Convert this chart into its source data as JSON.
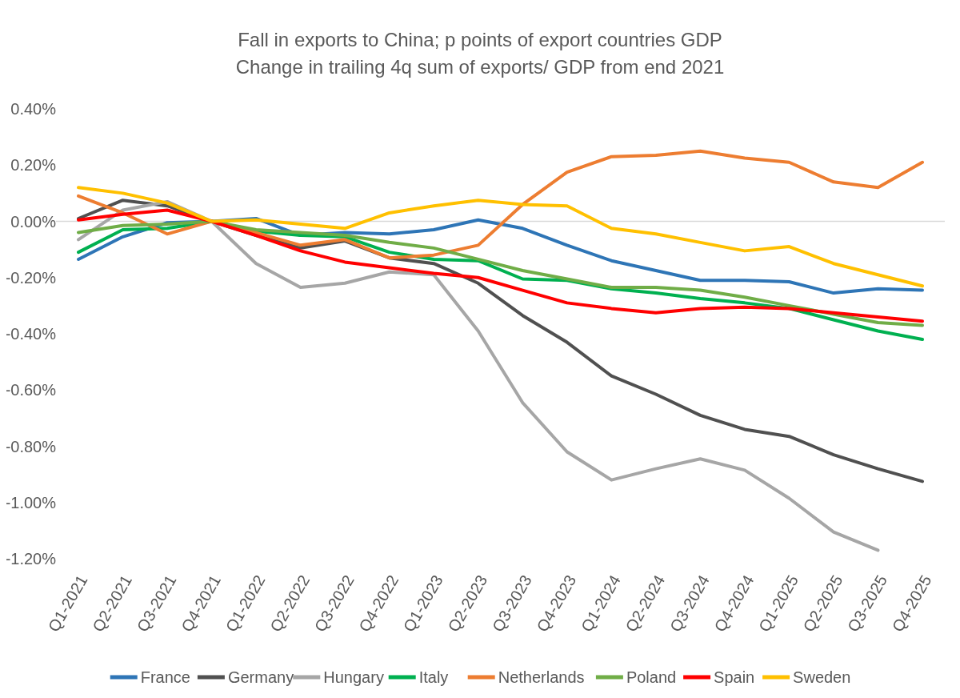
{
  "chart_data": {
    "type": "line",
    "title": "Fall in exports to China; p points of export countries GDP",
    "subtitle": "Change in trailing 4q sum of exports/ GDP from end 2021",
    "categories": [
      "Q1-2021",
      "Q2-2021",
      "Q3-2021",
      "Q4-2021",
      "Q1-2022",
      "Q2-2022",
      "Q3-2022",
      "Q4-2022",
      "Q1-2023",
      "Q2-2023",
      "Q3-2023",
      "Q4-2023",
      "Q1-2024",
      "Q2-2024",
      "Q3-2024",
      "Q4-2024",
      "Q1-2025",
      "Q2-2025",
      "Q3-2025",
      "Q4-2025"
    ],
    "ylim": [
      -1.2,
      0.4
    ],
    "yticks": [
      {
        "value": -1.2,
        "label": "-1.20%"
      },
      {
        "value": -1.0,
        "label": "-1.00%"
      },
      {
        "value": -0.8,
        "label": "-0.80%"
      },
      {
        "value": -0.6,
        "label": "-0.60%"
      },
      {
        "value": -0.4,
        "label": "-0.40%"
      },
      {
        "value": -0.2,
        "label": "-0.20%"
      },
      {
        "value": 0,
        "label": "0.00%"
      },
      {
        "value": 0.2,
        "label": "0.20%"
      },
      {
        "value": 0.4,
        "label": "0.40%"
      }
    ],
    "grid": false,
    "legend": "bottom",
    "ref_lines": [
      {
        "axis": "y",
        "value": 0,
        "color": "#d9d9d9"
      }
    ],
    "marker": "none",
    "line_style": "solid",
    "series": [
      {
        "name": "France",
        "color": "#2e75b6",
        "values": [
          -0.135,
          -0.055,
          -0.005,
          0,
          0.01,
          -0.05,
          -0.04,
          -0.045,
          -0.03,
          0.005,
          -0.025,
          -0.085,
          -0.14,
          -0.175,
          -0.21,
          -0.21,
          -0.215,
          -0.255,
          -0.24,
          -0.245
        ]
      },
      {
        "name": "Germany",
        "color": "#505050",
        "values": [
          0.01,
          0.075,
          0.055,
          0,
          -0.05,
          -0.095,
          -0.07,
          -0.13,
          -0.15,
          -0.22,
          -0.335,
          -0.43,
          -0.55,
          -0.615,
          -0.69,
          -0.74,
          -0.765,
          -0.83,
          -0.88,
          -0.925
        ]
      },
      {
        "name": "Hungary",
        "color": "#a6a6a6",
        "values": [
          -0.065,
          0.04,
          0.07,
          0,
          -0.15,
          -0.235,
          -0.22,
          -0.18,
          -0.19,
          -0.39,
          -0.645,
          -0.82,
          -0.92,
          -0.88,
          -0.845,
          -0.885,
          -0.985,
          -1.105,
          -1.17,
          null
        ]
      },
      {
        "name": "Italy",
        "color": "#00b050",
        "values": [
          -0.11,
          -0.03,
          -0.025,
          0,
          -0.035,
          -0.05,
          -0.055,
          -0.11,
          -0.135,
          -0.14,
          -0.205,
          -0.21,
          -0.24,
          -0.255,
          -0.275,
          -0.29,
          -0.31,
          -0.35,
          -0.39,
          -0.42
        ]
      },
      {
        "name": "Netherlands",
        "color": "#ed7d31",
        "values": [
          0.09,
          0.03,
          -0.045,
          0,
          -0.04,
          -0.085,
          -0.065,
          -0.13,
          -0.12,
          -0.085,
          0.06,
          0.175,
          0.23,
          0.235,
          0.25,
          0.225,
          0.21,
          0.14,
          0.12,
          0.21
        ]
      },
      {
        "name": "Poland",
        "color": "#70ad47",
        "values": [
          -0.04,
          -0.015,
          -0.01,
          0,
          -0.03,
          -0.04,
          -0.05,
          -0.075,
          -0.095,
          -0.135,
          -0.175,
          -0.205,
          -0.235,
          -0.235,
          -0.245,
          -0.27,
          -0.3,
          -0.33,
          -0.36,
          -0.37
        ]
      },
      {
        "name": "Spain",
        "color": "#ff0000",
        "values": [
          0.005,
          0.025,
          0.04,
          0,
          -0.05,
          -0.105,
          -0.145,
          -0.165,
          -0.185,
          -0.2,
          -0.245,
          -0.29,
          -0.31,
          -0.325,
          -0.31,
          -0.305,
          -0.31,
          -0.325,
          -0.34,
          -0.355
        ]
      },
      {
        "name": "Sweden",
        "color": "#ffc000",
        "values": [
          0.12,
          0.1,
          0.065,
          0,
          0.005,
          -0.01,
          -0.025,
          0.03,
          0.055,
          0.075,
          0.06,
          0.055,
          -0.025,
          -0.045,
          -0.075,
          -0.105,
          -0.09,
          -0.15,
          -0.19,
          -0.23
        ]
      }
    ]
  }
}
